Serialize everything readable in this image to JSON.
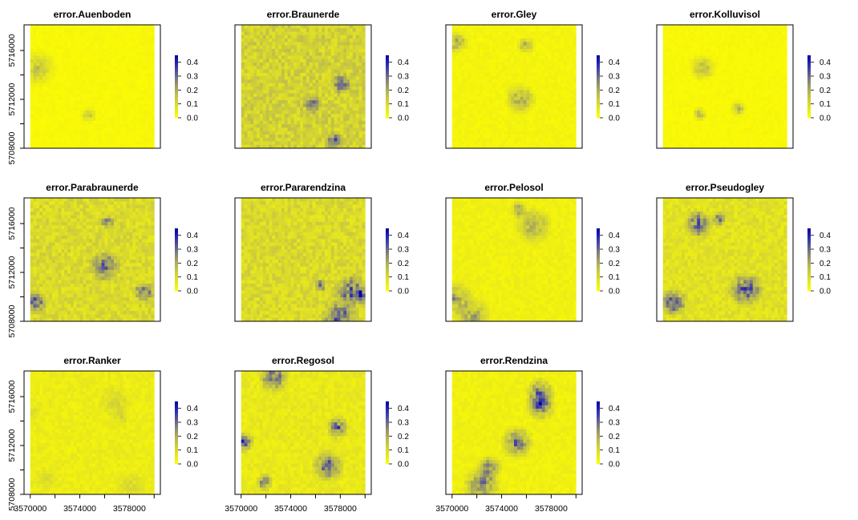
{
  "chart_data": {
    "type": "heatmap",
    "layout": "3x4 grid of raster maps",
    "x_ticks": [
      3570000,
      3574000,
      3578000
    ],
    "y_ticks": [
      5708000,
      5712000,
      5716000
    ],
    "xlim": [
      3569500,
      3580500
    ],
    "ylim": [
      5708000,
      5718100
    ],
    "color_scale": {
      "ticks": [
        0.0,
        0.1,
        0.2,
        0.3,
        0.4
      ],
      "labels": [
        "0.0",
        "0.1",
        "0.2",
        "0.3",
        "0.4"
      ],
      "colors": [
        "#ffff00",
        "#cccc44",
        "#999966",
        "#666688",
        "#0000aa"
      ]
    },
    "panels": [
      {
        "title": "error.Auenboden",
        "level": 0.02,
        "hotspot_max": 0.2
      },
      {
        "title": "error.Braunerde",
        "level": 0.12,
        "hotspot_max": 0.45
      },
      {
        "title": "error.Gley",
        "level": 0.03,
        "hotspot_max": 0.3
      },
      {
        "title": "error.Kolluvisol",
        "level": 0.02,
        "hotspot_max": 0.25
      },
      {
        "title": "error.Parabraunerde",
        "level": 0.1,
        "hotspot_max": 0.45
      },
      {
        "title": "error.Pararendzina",
        "level": 0.1,
        "hotspot_max": 0.45
      },
      {
        "title": "error.Pelosol",
        "level": 0.04,
        "hotspot_max": 0.3
      },
      {
        "title": "error.Pseudogley",
        "level": 0.08,
        "hotspot_max": 0.45
      },
      {
        "title": "error.Ranker",
        "level": 0.05,
        "hotspot_max": 0.15
      },
      {
        "title": "error.Regosol",
        "level": 0.06,
        "hotspot_max": 0.45
      },
      {
        "title": "error.Rendzina",
        "level": 0.04,
        "hotspot_max": 0.4
      }
    ]
  }
}
